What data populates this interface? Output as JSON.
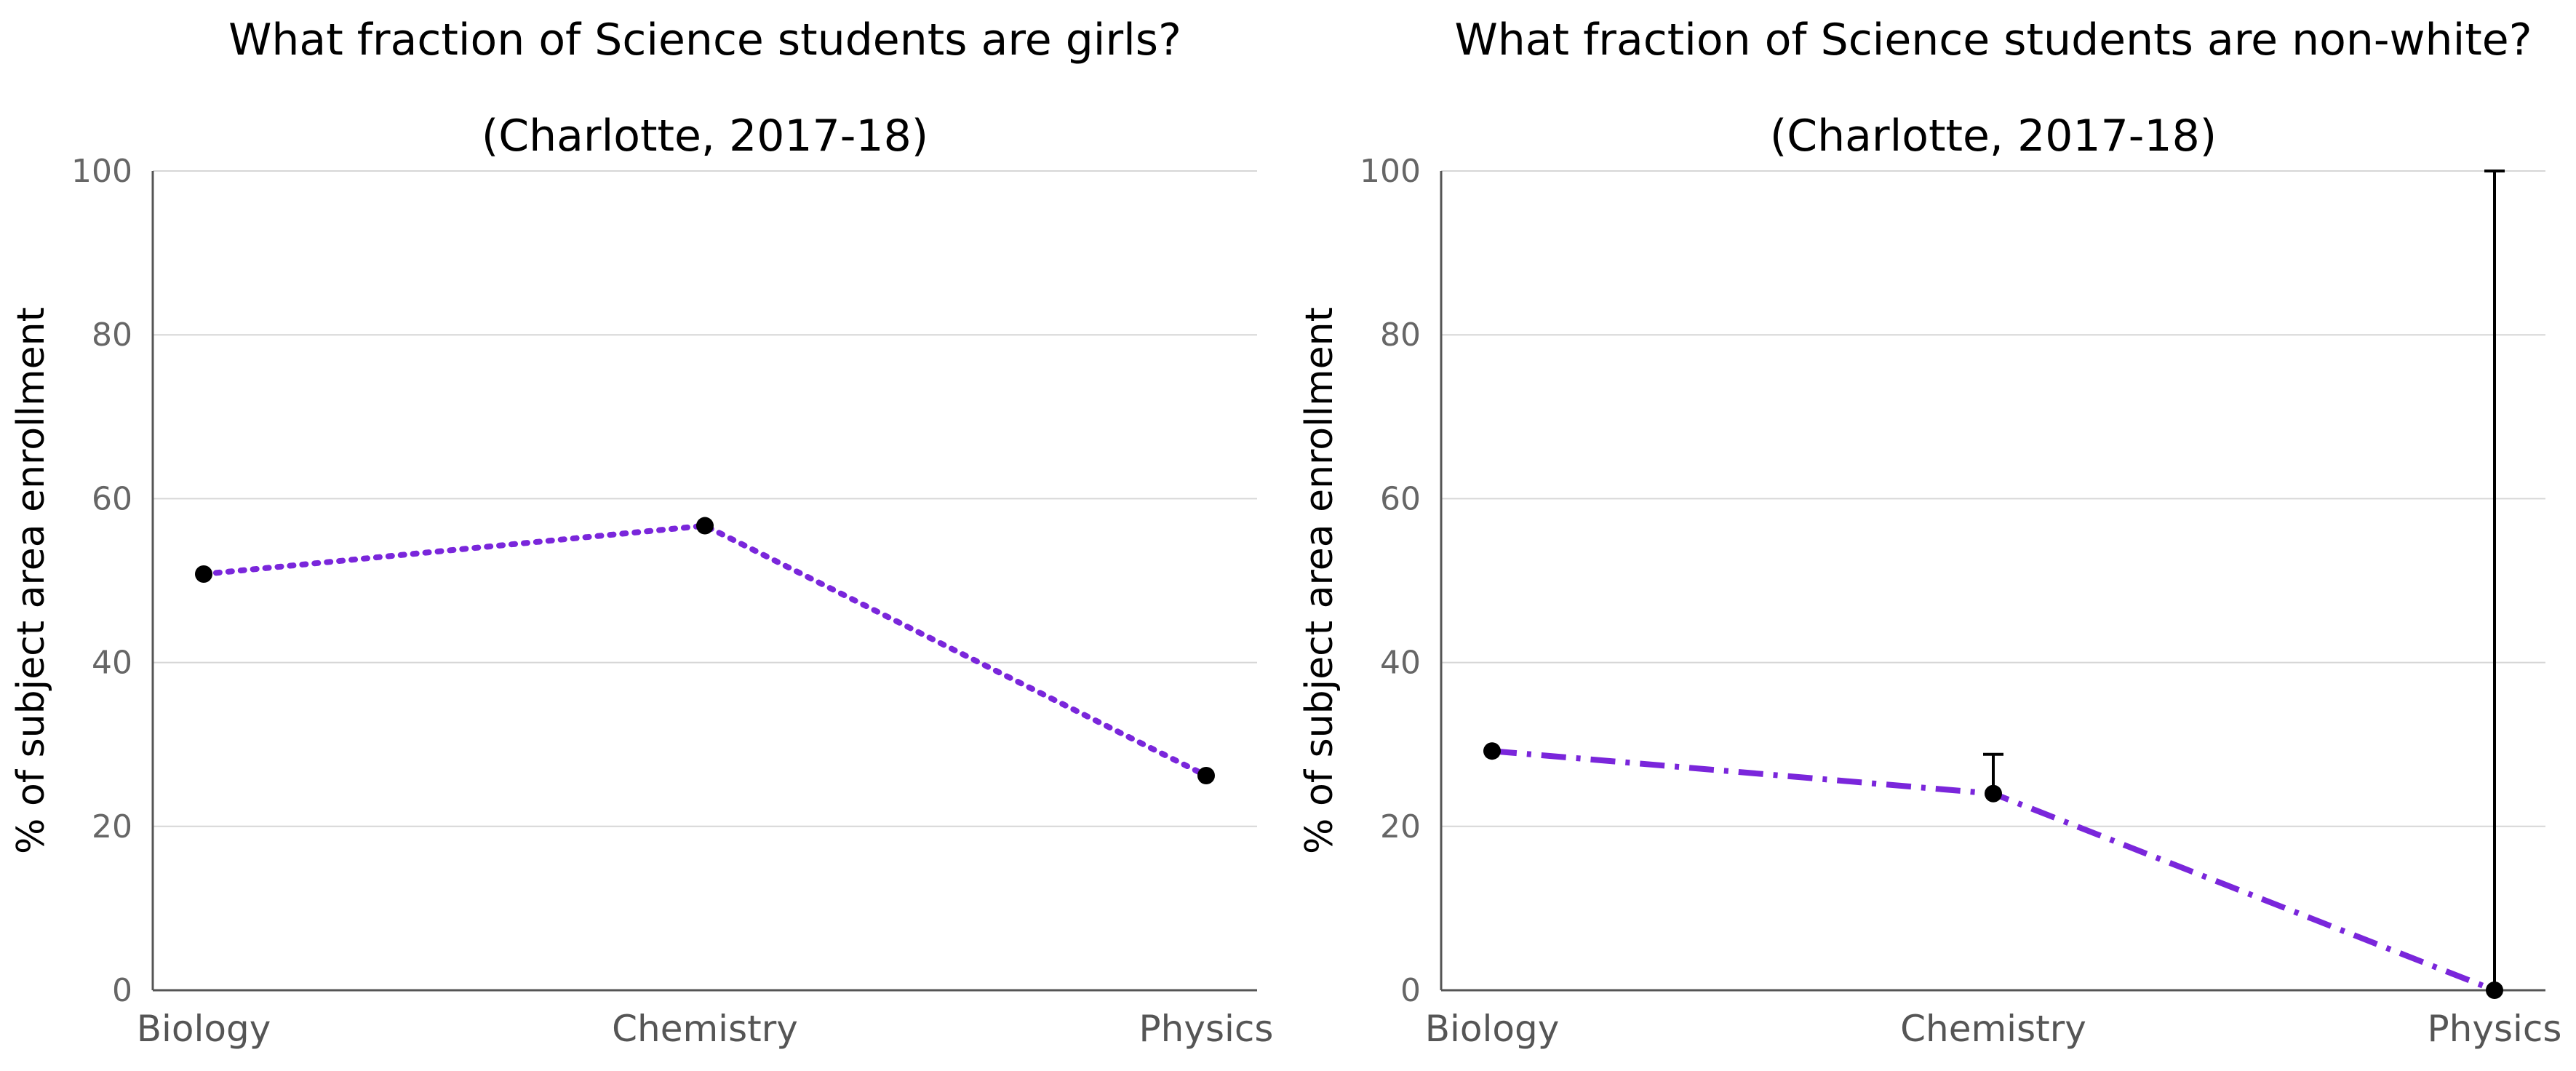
{
  "chart_data": [
    {
      "type": "line",
      "title": "What fraction of Science students are girls?",
      "subtitle": "(Charlotte, 2017-18)",
      "ylabel": "% of subject area enrollment",
      "xlabel": "",
      "categories": [
        "Biology",
        "Chemistry",
        "Physics"
      ],
      "series": [
        {
          "values": [
            50.8,
            56.7,
            26.2
          ],
          "color": "#7a26db",
          "line_style": "dotted",
          "marker_color": "#000000"
        }
      ],
      "error_bars": [],
      "ylim": [
        0,
        100
      ],
      "yticks": [
        0,
        20,
        40,
        60,
        80,
        100
      ],
      "grid": true,
      "legend": "none"
    },
    {
      "type": "line",
      "title": "What fraction of Science students are non-white?",
      "subtitle": "(Charlotte, 2017-18)",
      "ylabel": "% of subject area enrollment",
      "xlabel": "",
      "categories": [
        "Biology",
        "Chemistry",
        "Physics"
      ],
      "series": [
        {
          "values": [
            29.2,
            24.0,
            0.0
          ],
          "color": "#7a26db",
          "line_style": "dashdot",
          "marker_color": "#000000"
        }
      ],
      "error_bars": [
        {
          "category": "Chemistry",
          "low": 24.0,
          "high": 28.8
        },
        {
          "category": "Physics",
          "low": 0.0,
          "high": 100.0
        }
      ],
      "ylim": [
        0,
        100
      ],
      "yticks": [
        0,
        20,
        40,
        60,
        80,
        100
      ],
      "grid": true,
      "legend": "none"
    }
  ]
}
